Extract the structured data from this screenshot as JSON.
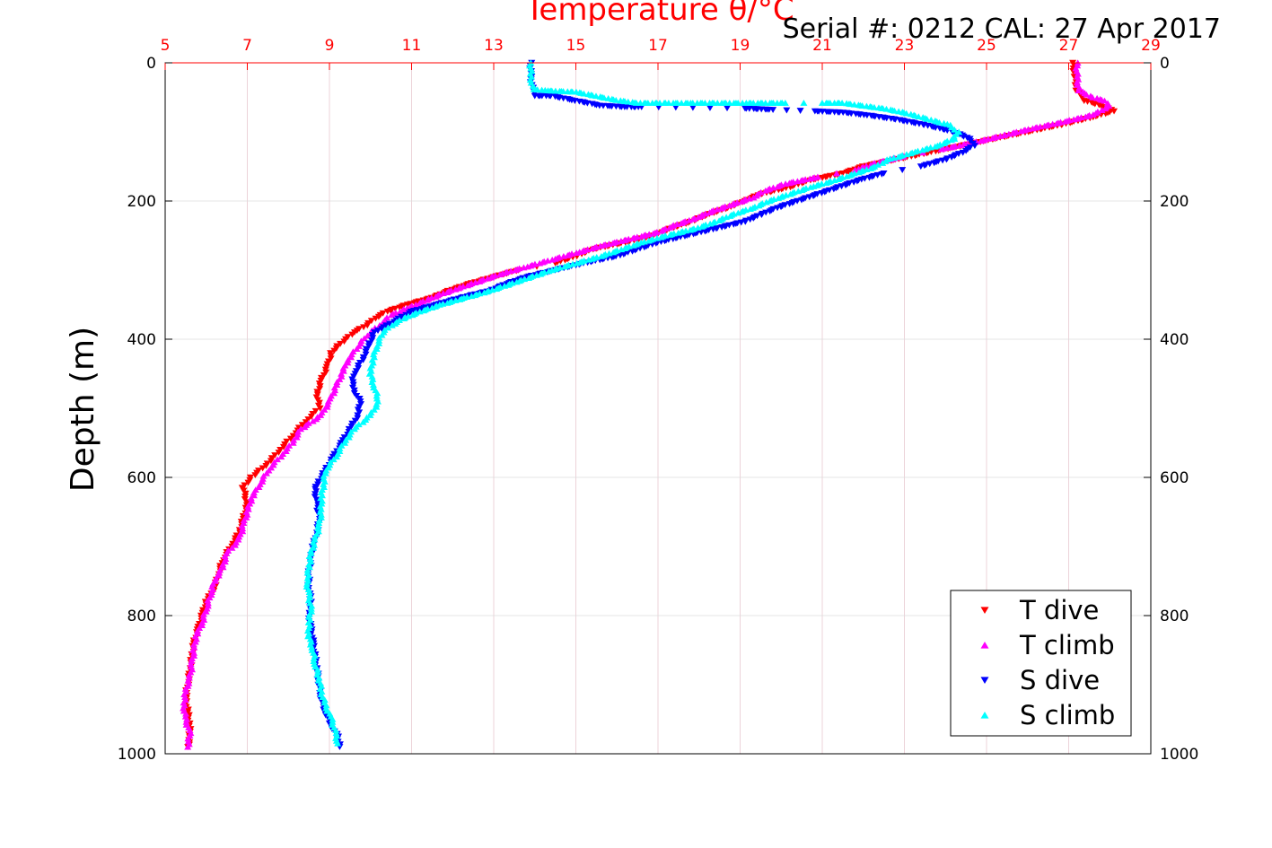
{
  "chart_data": {
    "type": "scatter",
    "title": "Temperature θ/°C",
    "annotation": "Serial #: 0212  CAL: 27 Apr 2017",
    "xlabel": "Temperature θ/°C",
    "ylabel": "Depth (m)",
    "xlim": [
      5,
      29
    ],
    "ylim": [
      0,
      1000
    ],
    "y_reversed": true,
    "xticks": [
      5,
      7,
      9,
      11,
      13,
      15,
      17,
      19,
      21,
      23,
      25,
      27,
      29
    ],
    "yticks": [
      0,
      200,
      400,
      600,
      800,
      1000
    ],
    "grid": true,
    "legend_position": "bottom-right",
    "colors": {
      "T dive": "#ff0000",
      "T climb": "#ff00ff",
      "S dive": "#0000ff",
      "S climb": "#00ffff",
      "axis_top": "#ff0000",
      "grid": "#e8c8d0"
    },
    "series": [
      {
        "name": "T dive",
        "marker": "triangle-down",
        "points": [
          [
            27.1,
            0
          ],
          [
            27.15,
            20
          ],
          [
            27.2,
            40
          ],
          [
            27.4,
            55
          ],
          [
            27.8,
            62
          ],
          [
            28.1,
            70
          ],
          [
            27.5,
            80
          ],
          [
            26.8,
            90
          ],
          [
            26.0,
            100
          ],
          [
            25.2,
            110
          ],
          [
            24.4,
            120
          ],
          [
            23.6,
            130
          ],
          [
            22.8,
            140
          ],
          [
            22.0,
            150
          ],
          [
            21.5,
            160
          ],
          [
            20.7,
            170
          ],
          [
            20.2,
            180
          ],
          [
            19.5,
            190
          ],
          [
            19.1,
            200
          ],
          [
            18.7,
            210
          ],
          [
            18.2,
            220
          ],
          [
            17.8,
            230
          ],
          [
            17.3,
            240
          ],
          [
            16.9,
            250
          ],
          [
            16.2,
            260
          ],
          [
            15.4,
            270
          ],
          [
            15.0,
            280
          ],
          [
            14.5,
            290
          ],
          [
            13.6,
            300
          ],
          [
            13.0,
            310
          ],
          [
            12.4,
            320
          ],
          [
            11.9,
            330
          ],
          [
            11.5,
            340
          ],
          [
            10.9,
            350
          ],
          [
            10.4,
            360
          ],
          [
            10.1,
            370
          ],
          [
            9.9,
            380
          ],
          [
            9.6,
            390
          ],
          [
            9.4,
            400
          ],
          [
            9.2,
            410
          ],
          [
            9.05,
            420
          ],
          [
            8.95,
            440
          ],
          [
            8.8,
            460
          ],
          [
            8.7,
            480
          ],
          [
            8.75,
            500
          ],
          [
            8.4,
            520
          ],
          [
            8.1,
            540
          ],
          [
            7.8,
            560
          ],
          [
            7.5,
            580
          ],
          [
            7.1,
            600
          ],
          [
            6.9,
            615
          ],
          [
            7.0,
            640
          ],
          [
            6.9,
            660
          ],
          [
            6.8,
            680
          ],
          [
            6.6,
            700
          ],
          [
            6.4,
            720
          ],
          [
            6.3,
            740
          ],
          [
            6.2,
            760
          ],
          [
            6.0,
            780
          ],
          [
            5.9,
            800
          ],
          [
            5.8,
            820
          ],
          [
            5.7,
            840
          ],
          [
            5.65,
            860
          ],
          [
            5.6,
            880
          ],
          [
            5.55,
            900
          ],
          [
            5.5,
            920
          ],
          [
            5.55,
            940
          ],
          [
            5.6,
            960
          ],
          [
            5.6,
            980
          ],
          [
            5.55,
            990
          ]
        ]
      },
      {
        "name": "T climb",
        "marker": "triangle-up",
        "points": [
          [
            27.2,
            0
          ],
          [
            27.2,
            20
          ],
          [
            27.25,
            40
          ],
          [
            27.6,
            50
          ],
          [
            27.9,
            55
          ],
          [
            28.0,
            62
          ],
          [
            27.6,
            75
          ],
          [
            26.9,
            85
          ],
          [
            26.1,
            95
          ],
          [
            25.4,
            105
          ],
          [
            24.7,
            115
          ],
          [
            23.9,
            125
          ],
          [
            23.0,
            135
          ],
          [
            22.3,
            145
          ],
          [
            21.8,
            155
          ],
          [
            20.9,
            165
          ],
          [
            20.1,
            175
          ],
          [
            19.6,
            185
          ],
          [
            19.3,
            195
          ],
          [
            18.8,
            205
          ],
          [
            18.3,
            215
          ],
          [
            17.9,
            225
          ],
          [
            17.4,
            235
          ],
          [
            17.0,
            245
          ],
          [
            16.3,
            255
          ],
          [
            15.6,
            265
          ],
          [
            15.0,
            275
          ],
          [
            14.4,
            285
          ],
          [
            13.8,
            295
          ],
          [
            13.2,
            305
          ],
          [
            12.7,
            315
          ],
          [
            12.2,
            325
          ],
          [
            11.7,
            335
          ],
          [
            11.3,
            345
          ],
          [
            10.9,
            355
          ],
          [
            10.5,
            365
          ],
          [
            10.2,
            380
          ],
          [
            9.9,
            395
          ],
          [
            9.7,
            410
          ],
          [
            9.45,
            430
          ],
          [
            9.3,
            450
          ],
          [
            9.15,
            470
          ],
          [
            9.0,
            490
          ],
          [
            8.8,
            510
          ],
          [
            8.3,
            530
          ],
          [
            8.1,
            550
          ],
          [
            7.8,
            570
          ],
          [
            7.5,
            590
          ],
          [
            7.3,
            610
          ],
          [
            7.1,
            630
          ],
          [
            7.0,
            650
          ],
          [
            6.9,
            670
          ],
          [
            6.8,
            690
          ],
          [
            6.5,
            710
          ],
          [
            6.4,
            730
          ],
          [
            6.2,
            750
          ],
          [
            6.1,
            770
          ],
          [
            6.0,
            790
          ],
          [
            5.9,
            810
          ],
          [
            5.75,
            830
          ],
          [
            5.7,
            850
          ],
          [
            5.65,
            870
          ],
          [
            5.6,
            890
          ],
          [
            5.5,
            910
          ],
          [
            5.45,
            930
          ],
          [
            5.5,
            950
          ],
          [
            5.6,
            970
          ],
          [
            5.55,
            990
          ]
        ]
      },
      {
        "name": "S dive",
        "marker": "triangle-down",
        "points": [
          [
            13.9,
            0
          ],
          [
            13.9,
            20
          ],
          [
            13.95,
            40
          ],
          [
            14.0,
            48
          ],
          [
            14.4,
            48
          ],
          [
            15.0,
            55
          ],
          [
            15.6,
            62
          ],
          [
            16.2,
            64
          ],
          [
            16.6,
            64
          ],
          [
            19.1,
            66
          ],
          [
            19.8,
            68
          ],
          [
            20.8,
            70
          ],
          [
            21.5,
            72
          ],
          [
            22.1,
            76
          ],
          [
            22.8,
            82
          ],
          [
            23.5,
            90
          ],
          [
            24.2,
            100
          ],
          [
            24.6,
            110
          ],
          [
            24.7,
            120
          ],
          [
            24.4,
            130
          ],
          [
            24.0,
            140
          ],
          [
            23.4,
            150
          ],
          [
            22.5,
            160
          ],
          [
            21.9,
            170
          ],
          [
            21.4,
            180
          ],
          [
            20.9,
            190
          ],
          [
            20.4,
            200
          ],
          [
            19.9,
            210
          ],
          [
            19.5,
            220
          ],
          [
            19.1,
            230
          ],
          [
            18.4,
            240
          ],
          [
            17.7,
            250
          ],
          [
            17.0,
            260
          ],
          [
            16.5,
            270
          ],
          [
            16.0,
            280
          ],
          [
            15.2,
            290
          ],
          [
            14.5,
            300
          ],
          [
            13.8,
            310
          ],
          [
            13.3,
            320
          ],
          [
            12.9,
            330
          ],
          [
            12.2,
            340
          ],
          [
            11.6,
            350
          ],
          [
            11.0,
            360
          ],
          [
            10.7,
            370
          ],
          [
            10.4,
            380
          ],
          [
            10.1,
            390
          ],
          [
            9.95,
            410
          ],
          [
            9.8,
            430
          ],
          [
            9.6,
            450
          ],
          [
            9.55,
            470
          ],
          [
            9.75,
            490
          ],
          [
            9.7,
            510
          ],
          [
            9.5,
            530
          ],
          [
            9.3,
            550
          ],
          [
            9.1,
            570
          ],
          [
            8.9,
            590
          ],
          [
            8.7,
            610
          ],
          [
            8.65,
            620
          ],
          [
            8.7,
            640
          ],
          [
            8.75,
            660
          ],
          [
            8.7,
            680
          ],
          [
            8.6,
            700
          ],
          [
            8.55,
            720
          ],
          [
            8.5,
            740
          ],
          [
            8.5,
            760
          ],
          [
            8.55,
            780
          ],
          [
            8.5,
            800
          ],
          [
            8.55,
            820
          ],
          [
            8.6,
            840
          ],
          [
            8.65,
            860
          ],
          [
            8.7,
            880
          ],
          [
            8.75,
            900
          ],
          [
            8.8,
            920
          ],
          [
            8.9,
            940
          ],
          [
            9.05,
            960
          ],
          [
            9.2,
            975
          ],
          [
            9.25,
            990
          ]
        ]
      },
      {
        "name": "S climb",
        "marker": "triangle-up",
        "points": [
          [
            13.9,
            0
          ],
          [
            13.9,
            20
          ],
          [
            13.95,
            38
          ],
          [
            14.3,
            40
          ],
          [
            15.0,
            42
          ],
          [
            15.5,
            48
          ],
          [
            16.0,
            54
          ],
          [
            16.5,
            58
          ],
          [
            17.2,
            58
          ],
          [
            17.8,
            58
          ],
          [
            18.6,
            58
          ],
          [
            19.2,
            58
          ],
          [
            19.7,
            58
          ],
          [
            20.1,
            58
          ],
          [
            21.0,
            58
          ],
          [
            21.5,
            58
          ],
          [
            22.0,
            62
          ],
          [
            22.5,
            66
          ],
          [
            23.0,
            72
          ],
          [
            23.5,
            80
          ],
          [
            24.1,
            90
          ],
          [
            24.3,
            100
          ],
          [
            24.2,
            110
          ],
          [
            23.8,
            120
          ],
          [
            23.2,
            130
          ],
          [
            22.6,
            140
          ],
          [
            22.3,
            150
          ],
          [
            21.8,
            160
          ],
          [
            21.3,
            170
          ],
          [
            20.7,
            180
          ],
          [
            20.2,
            190
          ],
          [
            19.7,
            200
          ],
          [
            19.3,
            210
          ],
          [
            18.8,
            220
          ],
          [
            18.4,
            230
          ],
          [
            17.9,
            240
          ],
          [
            17.2,
            250
          ],
          [
            16.6,
            260
          ],
          [
            16.1,
            270
          ],
          [
            15.6,
            280
          ],
          [
            15.0,
            290
          ],
          [
            14.4,
            300
          ],
          [
            13.9,
            310
          ],
          [
            13.4,
            320
          ],
          [
            12.9,
            330
          ],
          [
            12.3,
            340
          ],
          [
            11.7,
            350
          ],
          [
            11.2,
            360
          ],
          [
            10.8,
            370
          ],
          [
            10.5,
            380
          ],
          [
            10.3,
            390
          ],
          [
            10.15,
            410
          ],
          [
            10.05,
            430
          ],
          [
            10.0,
            450
          ],
          [
            10.1,
            470
          ],
          [
            10.2,
            490
          ],
          [
            10.0,
            510
          ],
          [
            9.6,
            530
          ],
          [
            9.35,
            550
          ],
          [
            9.15,
            570
          ],
          [
            8.9,
            590
          ],
          [
            8.85,
            610
          ],
          [
            8.8,
            630
          ],
          [
            8.8,
            650
          ],
          [
            8.75,
            670
          ],
          [
            8.65,
            690
          ],
          [
            8.55,
            710
          ],
          [
            8.5,
            730
          ],
          [
            8.45,
            750
          ],
          [
            8.5,
            770
          ],
          [
            8.55,
            790
          ],
          [
            8.5,
            810
          ],
          [
            8.5,
            830
          ],
          [
            8.6,
            850
          ],
          [
            8.65,
            870
          ],
          [
            8.75,
            890
          ],
          [
            8.8,
            910
          ],
          [
            8.9,
            930
          ],
          [
            9.05,
            950
          ],
          [
            9.15,
            970
          ],
          [
            9.2,
            985
          ]
        ]
      }
    ]
  }
}
